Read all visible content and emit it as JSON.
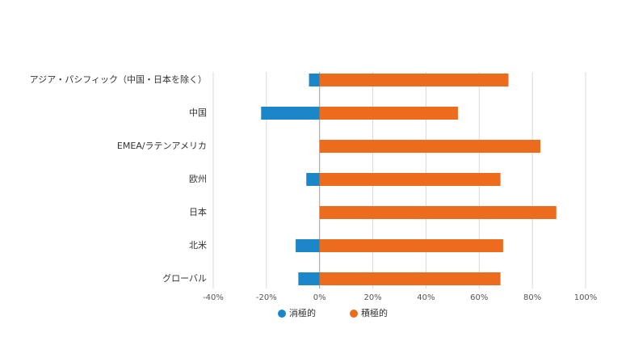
{
  "chart_data": {
    "type": "bar",
    "orientation": "horizontal",
    "stacked": false,
    "categories": [
      "アジア・パシフィック（中国・日本を除く）",
      "中国",
      "EMEA/ラテンアメリカ",
      "欧州",
      "日本",
      "北米",
      "グローバル"
    ],
    "series": [
      {
        "name": "消極的",
        "color": "#1b87c9",
        "values": [
          -4,
          -22,
          0,
          -5,
          0,
          -9,
          -8
        ]
      },
      {
        "name": "積極的",
        "color": "#ec6b1c",
        "values": [
          71,
          52,
          83,
          68,
          89,
          69,
          68
        ]
      }
    ],
    "xlim": [
      -40,
      100
    ],
    "x_ticks": [
      "-40%",
      "-20%",
      "0%",
      "20%",
      "40%",
      "60%",
      "80%",
      "100%"
    ],
    "x_tick_values": [
      -40,
      -20,
      0,
      20,
      40,
      60,
      80,
      100
    ],
    "grid": true,
    "legend_position": "bottom"
  }
}
